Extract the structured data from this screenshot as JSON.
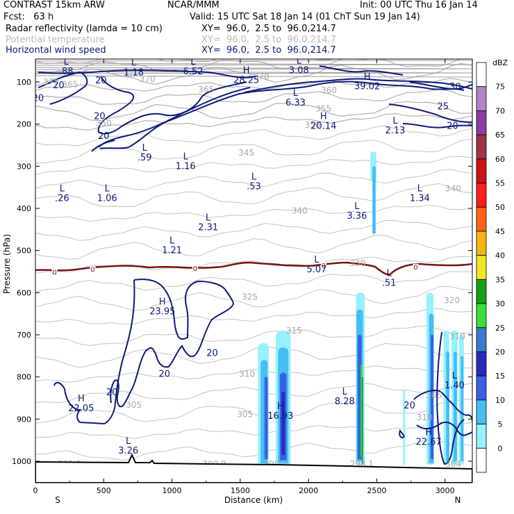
{
  "header": {
    "model": "CONTRAST 15km ARW",
    "center": "NCAR/MMM",
    "init": "Init: 00 UTC Thu 16 Jan 14",
    "fcst": "Fcst:   63 h",
    "valid": "Valid: 15 UTC Sat 18 Jan 14 (01 ChT Sun 19 Jan 14)",
    "fields": [
      {
        "name": "Radar reflectivity (lamda = 10 cm)",
        "xy": "XY=  96.0,  2.5 to  96.0,214.7",
        "color": "#000000"
      },
      {
        "name": "Potential temperature",
        "xy": "XY=  96.0,  2.5 to  96.0,214.7",
        "color": "#b8b8b8"
      },
      {
        "name": "Horizontal wind speed",
        "xy": "XY=  96.0,  2.5 to  96.0,214.7",
        "color": "#0a1a7a"
      }
    ]
  },
  "chart_data": {
    "type": "cross-section",
    "xlabel": "Distance (km)",
    "ylabel": "Pressure (hPa)",
    "xlim": [
      0,
      3200
    ],
    "ylim": [
      1050,
      40
    ],
    "xticks": [
      0,
      500,
      1000,
      1500,
      2000,
      2500,
      3000
    ],
    "yticks": [
      100,
      200,
      300,
      400,
      500,
      600,
      700,
      800,
      900,
      1000
    ],
    "end_labels": {
      "left": "S",
      "right": "N"
    },
    "colorbar": {
      "unit": "dBZ",
      "levels": [
        "0",
        "5",
        "10",
        "15",
        "20",
        "25",
        "30",
        "35",
        "40",
        "45",
        "50",
        "55",
        "60",
        "65",
        "70",
        "75"
      ],
      "colors": [
        "#ffffff",
        "#96f0ff",
        "#46bef0",
        "#3a5ee6",
        "#2a2ab8",
        "#3c7ad2",
        "#3cdc3c",
        "#14a014",
        "#f0e628",
        "#f5b414",
        "#ff6414",
        "#ff1e1e",
        "#c81414",
        "#a03246",
        "#8c3ca0",
        "#b482c8",
        "#ffffff"
      ]
    },
    "wind_speed_labels": [
      {
        "text": "20",
        "x": 20,
        "p": 145
      },
      {
        "text": "20",
        "x": 470,
        "p": 188
      },
      {
        "text": "20",
        "x": 480,
        "p": 103
      },
      {
        "text": "20",
        "x": 170,
        "p": 115
      },
      {
        "text": "20",
        "x": 500,
        "p": 235
      },
      {
        "text": "25",
        "x": 2985,
        "p": 165
      },
      {
        "text": "30",
        "x": 3075,
        "p": 118
      },
      {
        "text": "20",
        "x": 3055,
        "p": 211
      },
      {
        "text": "20",
        "x": 1295,
        "p": 750
      },
      {
        "text": "20",
        "x": 945,
        "p": 800
      },
      {
        "text": "20",
        "x": 560,
        "p": 843
      },
      {
        "text": "20",
        "x": 2740,
        "p": 875
      }
    ],
    "theta_labels": [
      {
        "text": "370",
        "x": 115,
        "p": 107
      },
      {
        "text": "365",
        "x": 255,
        "p": 112
      },
      {
        "text": "370",
        "x": 820,
        "p": 100
      },
      {
        "text": "365",
        "x": 1250,
        "p": 125
      },
      {
        "text": "370",
        "x": 1655,
        "p": 94
      },
      {
        "text": "360",
        "x": 2150,
        "p": 126
      },
      {
        "text": "355",
        "x": 2110,
        "p": 170
      },
      {
        "text": "350",
        "x": 2030,
        "p": 209
      },
      {
        "text": "350",
        "x": 500,
        "p": 205
      },
      {
        "text": "345",
        "x": 1545,
        "p": 275
      },
      {
        "text": "340",
        "x": 3060,
        "p": 360
      },
      {
        "text": "340",
        "x": 1935,
        "p": 412
      },
      {
        "text": "330",
        "x": 2360,
        "p": 537
      },
      {
        "text": "325",
        "x": 1570,
        "p": 617
      },
      {
        "text": "320",
        "x": 3050,
        "p": 625
      },
      {
        "text": "315",
        "x": 1895,
        "p": 697
      },
      {
        "text": "310",
        "x": 3090,
        "p": 711
      },
      {
        "text": "310",
        "x": 1550,
        "p": 800
      },
      {
        "text": "305",
        "x": 720,
        "p": 873
      },
      {
        "text": "305",
        "x": 1535,
        "p": 895
      },
      {
        "text": "305",
        "x": 2920,
        "p": 850
      },
      {
        "text": "310",
        "x": 2850,
        "p": 903
      },
      {
        "text": "301.1",
        "x": 250,
        "p": 1013
      },
      {
        "text": "300.9",
        "x": 1310,
        "p": 1013
      },
      {
        "text": "299.6",
        "x": 1760,
        "p": 1013
      },
      {
        "text": "298.1",
        "x": 2390,
        "p": 1013
      },
      {
        "text": "304",
        "x": 3060,
        "p": 1013
      }
    ],
    "freezing_level_labels": [
      {
        "text": "0",
        "x": 140,
        "p": 556
      },
      {
        "text": "0",
        "x": 420,
        "p": 549
      },
      {
        "text": "0",
        "x": 1170,
        "p": 547
      },
      {
        "text": "0",
        "x": 2110,
        "p": 540
      },
      {
        "text": "0",
        "x": 2785,
        "p": 543
      }
    ],
    "extrema": [
      {
        "kind": "L",
        "value": ".88",
        "x": 225,
        "p": 80
      },
      {
        "kind": "L",
        "value": "1.18",
        "x": 720,
        "p": 83
      },
      {
        "kind": "L",
        "value": "6.52",
        "x": 1155,
        "p": 80
      },
      {
        "kind": "H",
        "value": "28.25",
        "x": 1545,
        "p": 101
      },
      {
        "kind": "L",
        "value": "3.08",
        "x": 1930,
        "p": 78
      },
      {
        "kind": "H",
        "value": "39.02",
        "x": 2430,
        "p": 116
      },
      {
        "kind": "L",
        "value": "6.33",
        "x": 1905,
        "p": 154
      },
      {
        "kind": "H",
        "value": "20.14",
        "x": 2110,
        "p": 210
      },
      {
        "kind": "L",
        "value": "2.13",
        "x": 2635,
        "p": 220
      },
      {
        "kind": "L",
        "value": ".59",
        "x": 800,
        "p": 285
      },
      {
        "kind": "L",
        "value": "1.16",
        "x": 1100,
        "p": 305
      },
      {
        "kind": "L",
        "value": ".53",
        "x": 1600,
        "p": 353
      },
      {
        "kind": "L",
        "value": ".26",
        "x": 195,
        "p": 381
      },
      {
        "kind": "L",
        "value": "1.06",
        "x": 525,
        "p": 381
      },
      {
        "kind": "L",
        "value": "3.36",
        "x": 2355,
        "p": 423
      },
      {
        "kind": "L",
        "value": "1.34",
        "x": 2815,
        "p": 381
      },
      {
        "kind": "L",
        "value": "2.31",
        "x": 1265,
        "p": 450
      },
      {
        "kind": "L",
        "value": "1.21",
        "x": 1000,
        "p": 505
      },
      {
        "kind": "L",
        "value": "5.07",
        "x": 2060,
        "p": 550
      },
      {
        "kind": "L",
        "value": ".51",
        "x": 2590,
        "p": 582
      },
      {
        "kind": "H",
        "value": "23.95",
        "x": 930,
        "p": 650
      },
      {
        "kind": "H",
        "value": "22.05",
        "x": 335,
        "p": 880
      },
      {
        "kind": "H",
        "value": "16.93",
        "x": 1795,
        "p": 898
      },
      {
        "kind": "L",
        "value": "8.28",
        "x": 2265,
        "p": 863
      },
      {
        "kind": "H",
        "value": "22.67",
        "x": 2880,
        "p": 960
      },
      {
        "kind": "L",
        "value": "1.40",
        "x": 3070,
        "p": 825
      },
      {
        "kind": "L",
        "value": "3.26",
        "x": 680,
        "p": 980
      }
    ],
    "theta_guide_lines_count": 26
  }
}
